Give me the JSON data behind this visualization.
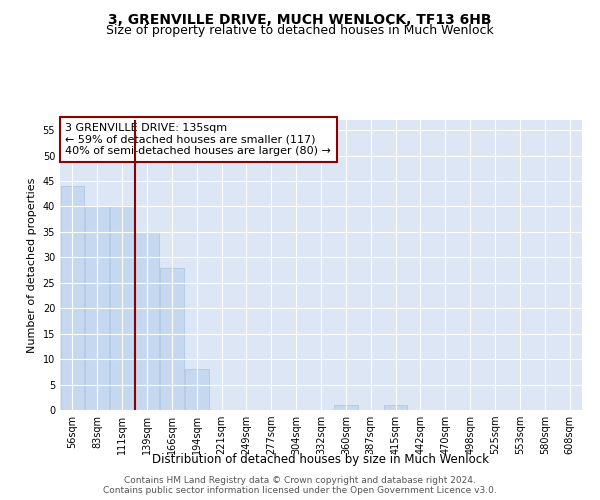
{
  "title": "3, GRENVILLE DRIVE, MUCH WENLOCK, TF13 6HB",
  "subtitle": "Size of property relative to detached houses in Much Wenlock",
  "xlabel": "Distribution of detached houses by size in Much Wenlock",
  "ylabel": "Number of detached properties",
  "bar_labels": [
    "56sqm",
    "83sqm",
    "111sqm",
    "139sqm",
    "166sqm",
    "194sqm",
    "221sqm",
    "249sqm",
    "277sqm",
    "304sqm",
    "332sqm",
    "360sqm",
    "387sqm",
    "415sqm",
    "442sqm",
    "470sqm",
    "498sqm",
    "525sqm",
    "553sqm",
    "580sqm",
    "608sqm"
  ],
  "bar_values": [
    44,
    40,
    40,
    35,
    28,
    8,
    0,
    0,
    0,
    0,
    0,
    1,
    0,
    1,
    0,
    0,
    0,
    0,
    0,
    0,
    0
  ],
  "bar_color": "#c5d8f0",
  "bar_edge_color": "#a8c4e0",
  "vline_color": "#8b0000",
  "annotation_text": "3 GRENVILLE DRIVE: 135sqm\n← 59% of detached houses are smaller (117)\n40% of semi-detached houses are larger (80) →",
  "annotation_box_color": "white",
  "annotation_box_edge_color": "#8b0000",
  "ylim": [
    0,
    57
  ],
  "yticks": [
    0,
    5,
    10,
    15,
    20,
    25,
    30,
    35,
    40,
    45,
    50,
    55
  ],
  "plot_bg_color": "#dce6f5",
  "grid_color": "white",
  "footer_text": "Contains HM Land Registry data © Crown copyright and database right 2024.\nContains public sector information licensed under the Open Government Licence v3.0.",
  "title_fontsize": 10,
  "subtitle_fontsize": 9,
  "xlabel_fontsize": 8.5,
  "ylabel_fontsize": 8,
  "tick_fontsize": 7,
  "annotation_fontsize": 8,
  "footer_fontsize": 6.5
}
